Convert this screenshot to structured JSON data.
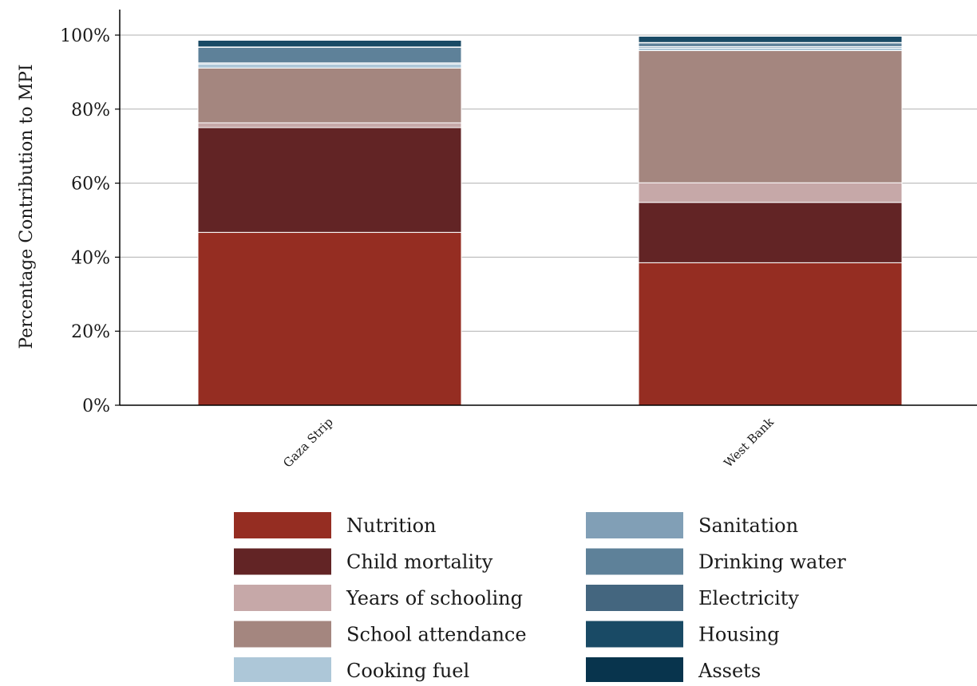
{
  "chart_data": {
    "type": "bar",
    "stacked": true,
    "title": "",
    "xlabel": "",
    "ylabel": "Percentage Contribution to MPI",
    "ylim": [
      0,
      100
    ],
    "y_ticks": [
      0,
      20,
      40,
      60,
      80,
      100
    ],
    "y_tick_labels": [
      "0%",
      "20%",
      "40%",
      "60%",
      "80%",
      "100%"
    ],
    "grid": "horizontal",
    "legend_position": "bottom",
    "categories": [
      "Gaza Strip",
      "West Bank"
    ],
    "series": [
      {
        "name": "Nutrition",
        "color": "#952d22",
        "values": [
          46.7,
          38.5
        ]
      },
      {
        "name": "Child mortality",
        "color": "#622425",
        "values": [
          28.3,
          16.3
        ]
      },
      {
        "name": "Years of schooling",
        "color": "#c6a8a8",
        "values": [
          1.3,
          5.3
        ]
      },
      {
        "name": "School attendance",
        "color": "#a4867f",
        "values": [
          14.8,
          35.7
        ]
      },
      {
        "name": "Cooking fuel",
        "color": "#adc7d8",
        "values": [
          1.1,
          0.7
        ]
      },
      {
        "name": "Sanitation",
        "color": "#819fb6",
        "values": [
          0.3,
          0.4
        ]
      },
      {
        "name": "Drinking water",
        "color": "#5e8199",
        "values": [
          4.2,
          1.0
        ]
      },
      {
        "name": "Electricity",
        "color": "#44667f",
        "values": [
          0.1,
          0.1
        ]
      },
      {
        "name": "Housing",
        "color": "#194a65",
        "values": [
          1.8,
          1.7
        ]
      },
      {
        "name": "Assets",
        "color": "#08344d",
        "values": [
          0.1,
          0.1
        ]
      }
    ]
  }
}
